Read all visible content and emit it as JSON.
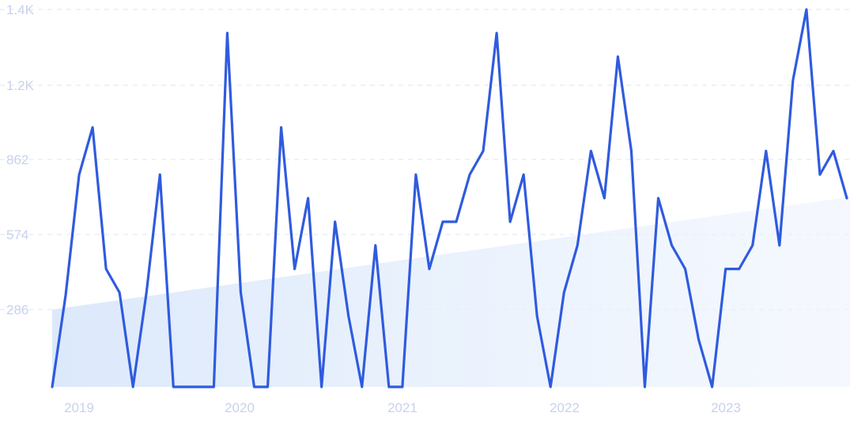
{
  "chart_data": {
    "type": "line",
    "title": "",
    "xlabel": "",
    "ylabel": "",
    "ylim": [
      0,
      1430
    ],
    "yticks": [
      286,
      574,
      862,
      "1.2K",
      "1.4K"
    ],
    "ytick_values": [
      286,
      574,
      862,
      1150,
      1430
    ],
    "xticks": [
      "2019",
      "2020",
      "2021",
      "2022",
      "2023"
    ],
    "x_start": "2018-11",
    "grid": "horizontal dashed",
    "colors": {
      "line": "#2f5bde",
      "trend_fill": "#dce9fb",
      "grid": "#dde4f3",
      "tick_text": "#c8d2ec"
    },
    "trend": {
      "start": 295,
      "end": 725
    },
    "series": [
      {
        "values": [
          0,
          350,
          810,
          990,
          450,
          360,
          0,
          360,
          810,
          0,
          0,
          0,
          0,
          1350,
          360,
          0,
          0,
          990,
          450,
          720,
          0,
          630,
          270,
          0,
          540,
          0,
          0,
          810,
          450,
          630,
          630,
          810,
          900,
          1350,
          630,
          810,
          270,
          0,
          360,
          540,
          900,
          720,
          1260,
          900,
          0,
          720,
          540,
          450,
          180,
          0,
          450,
          450,
          540,
          900,
          540,
          1170,
          1440,
          810,
          900,
          720
        ]
      }
    ]
  }
}
